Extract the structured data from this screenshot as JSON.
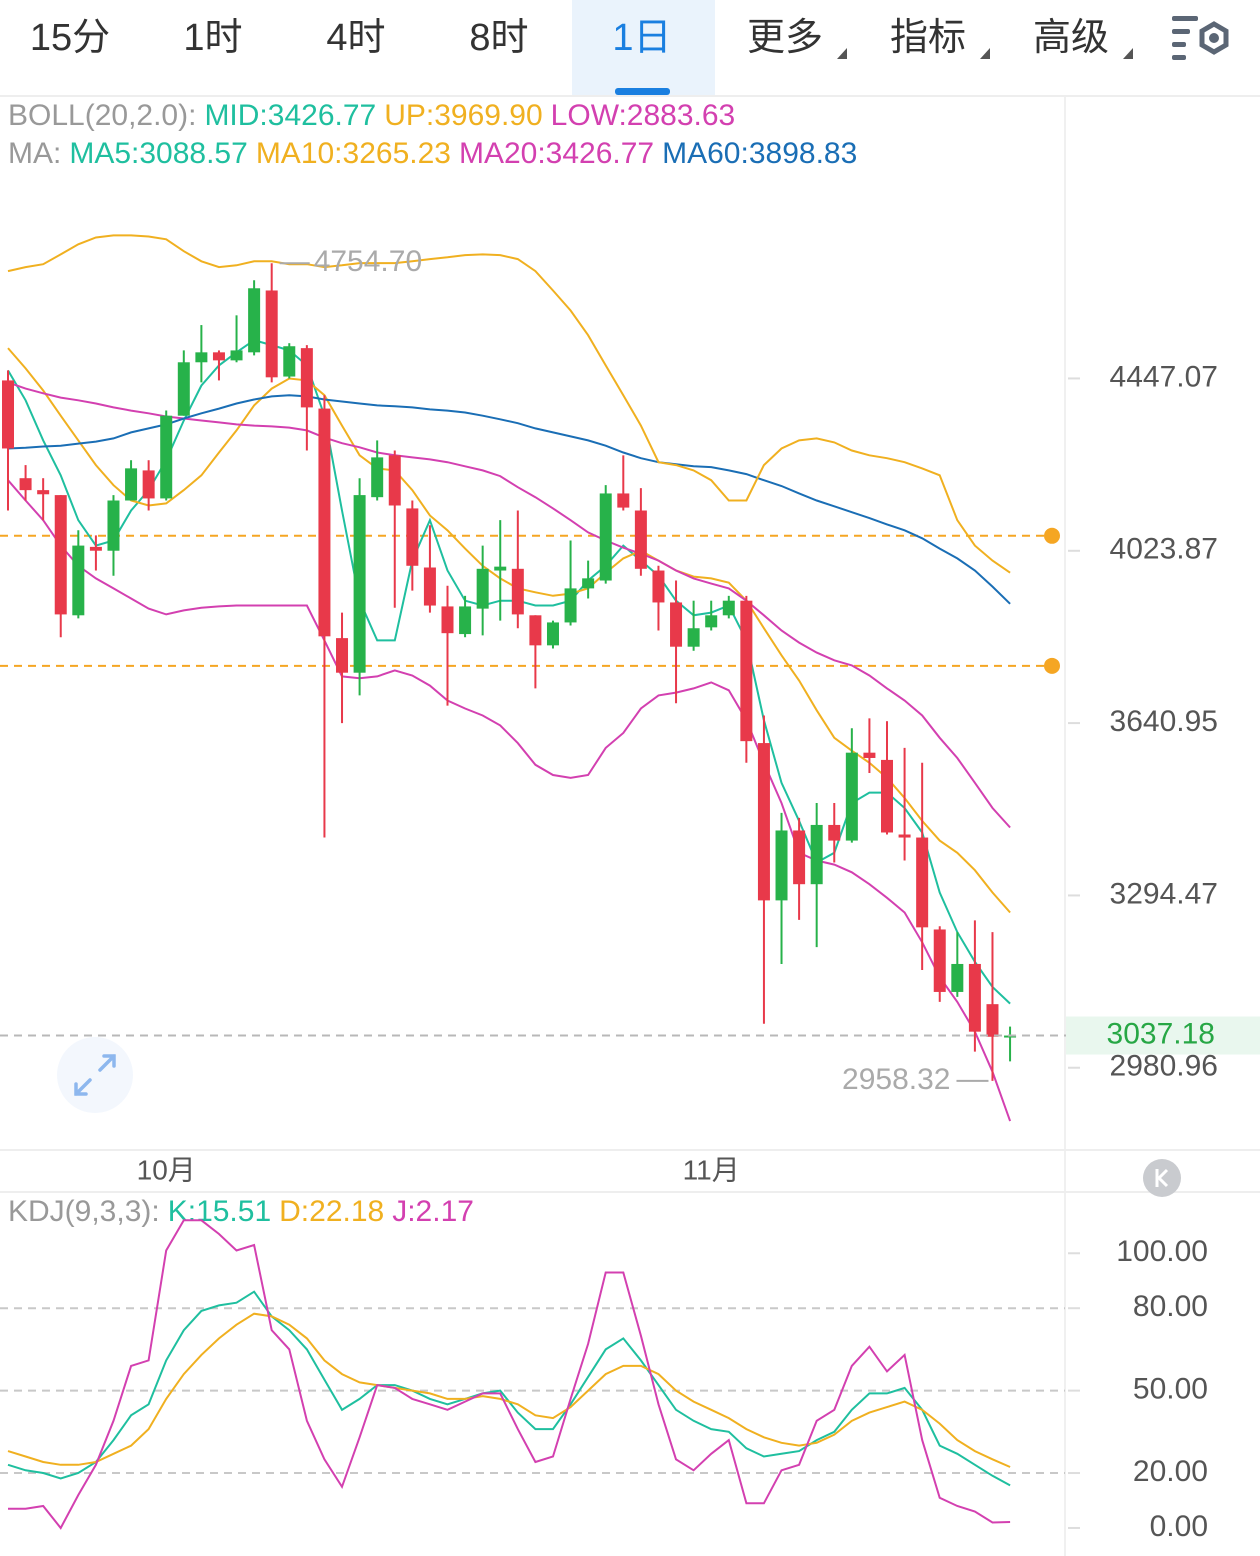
{
  "tabs": [
    {
      "label": "15分"
    },
    {
      "label": "1时"
    },
    {
      "label": "4时"
    },
    {
      "label": "8时"
    },
    {
      "label": "1日",
      "active": true
    },
    {
      "label": "更多",
      "menu": true
    },
    {
      "label": "指标",
      "menu": true
    },
    {
      "label": "高级",
      "menu": true
    }
  ],
  "chart_data": [
    {
      "type": "candlestick",
      "legend_rows": [
        {
          "label": "BOLL(20,2.0):",
          "items": [
            {
              "text": "MID:3426.77",
              "color": "#1fbf9f"
            },
            {
              "text": "UP:3969.90",
              "color": "#f0b020"
            },
            {
              "text": "LOW:2883.63",
              "color": "#d340b0"
            }
          ]
        },
        {
          "label": "MA:",
          "items": [
            {
              "text": "MA5:3088.57",
              "color": "#1fbf9f"
            },
            {
              "text": "MA10:3265.23",
              "color": "#f0b020"
            },
            {
              "text": "MA20:3426.77",
              "color": "#d340b0"
            },
            {
              "text": "MA60:3898.83",
              "color": "#1a6eb5"
            }
          ]
        }
      ],
      "categories": [
        null,
        null,
        null,
        null,
        null,
        null,
        null,
        null,
        null,
        "10月",
        null,
        null,
        null,
        null,
        null,
        null,
        null,
        null,
        null,
        null,
        null,
        null,
        null,
        null,
        null,
        null,
        null,
        null,
        null,
        null,
        null,
        null,
        null,
        null,
        null,
        null,
        null,
        null,
        null,
        null,
        "11月",
        null,
        null,
        null,
        null,
        null,
        null,
        null,
        null,
        null,
        null,
        null,
        null,
        null,
        null,
        null,
        null,
        null
      ],
      "open": [
        4442,
        4197,
        4168,
        4156,
        3876,
        4033,
        4024,
        4143,
        4216,
        4148,
        4352,
        4489,
        4515,
        4494,
        4515,
        4680,
        4452,
        4526,
        4370,
        3825,
        3749,
        4151,
        4253,
        4124,
        3985,
        3896,
        3834,
        3891,
        3978,
        3982,
        3876,
        3809,
        3860,
        3937,
        3955,
        4160,
        4119,
        3978,
        3905,
        3806,
        3849,
        3876,
        3909,
        3599,
        3285,
        3421,
        3316,
        3432,
        3401,
        3579,
        3564,
        3413,
        3407,
        3230,
        3115,
        3166,
        3093,
        3034
      ],
      "high": [
        4468,
        4229,
        4197,
        4156,
        4072,
        4060,
        4156,
        4241,
        4241,
        4365,
        4520,
        4587,
        4520,
        4613,
        4708,
        4754.7,
        4539,
        4534,
        4404,
        3882,
        4197,
        4290,
        4265,
        4143,
        4084,
        3943,
        3920,
        4036,
        4096,
        4119,
        3876,
        3864,
        4048,
        4001,
        4180,
        4253,
        4173,
        3989,
        3955,
        3909,
        3909,
        3920,
        3920,
        3657,
        3456,
        3446,
        3476,
        3476,
        3630,
        3651,
        3645,
        3589,
        3558,
        3236,
        3225,
        3247,
        3225,
        3053
      ],
      "low": [
        4119,
        4143,
        4096,
        3827,
        3869,
        3978,
        3966,
        4143,
        4119,
        4143,
        4352,
        4437,
        4442,
        4489,
        4507,
        4437,
        4447,
        4265,
        3407,
        3641,
        3700,
        4143,
        3893,
        3932,
        3882,
        3678,
        3827,
        3831,
        3864,
        3847,
        3715,
        3802,
        3853,
        3914,
        3948,
        4119,
        3966,
        3842,
        3683,
        3797,
        3842,
        3869,
        3558,
        3058,
        3166,
        3248,
        3197,
        3358,
        3397,
        3537,
        3413,
        3362,
        3155,
        3097,
        3106,
        3009,
        2958.32,
        2992
      ],
      "close": [
        4270,
        4168,
        4158,
        3878,
        4036,
        4024,
        4143,
        4221,
        4148,
        4352,
        4489,
        4515,
        4494,
        4520,
        4686,
        4450,
        4531,
        4373,
        3829,
        3749,
        4156,
        4248,
        4131,
        3989,
        3898,
        3836,
        3896,
        3982,
        3987,
        3878,
        3809,
        3860,
        3937,
        3960,
        4160,
        4126,
        3982,
        3905,
        3806,
        3847,
        3876,
        3909,
        3603,
        3285,
        3421,
        3316,
        3432,
        3401,
        3579,
        3568,
        3417,
        3407,
        3234,
        3115,
        3166,
        3044,
        3035,
        3037.18
      ],
      "up_color": "#27b24a",
      "down_color": "#e8394a",
      "series": [
        {
          "color": "#1fbf9f",
          "values": [
            4468,
            4391,
            4290,
            4204,
            4096,
            4036,
            4048,
            4119,
            4168,
            4241,
            4340,
            4429,
            4481,
            4515,
            4547,
            4534,
            4520,
            4481,
            4352,
            4119,
            3909,
            3820,
            3820,
            4001,
            4096,
            3978,
            3909,
            3898,
            3909,
            3909,
            3898,
            3898,
            3909,
            3955,
            3989,
            4036,
            4001,
            3966,
            3909,
            3876,
            3882,
            3898,
            3820,
            3647,
            3517,
            3440,
            3358,
            3377,
            3476,
            3497,
            3497,
            3466,
            3417,
            3300,
            3225,
            3170,
            3124,
            3094
          ]
        },
        {
          "color": "#f0b020",
          "values": [
            4526,
            4473,
            4416,
            4352,
            4290,
            4229,
            4180,
            4143,
            4131,
            4136,
            4168,
            4204,
            4260,
            4315,
            4378,
            4421,
            4447,
            4442,
            4404,
            4327,
            4253,
            4221,
            4216,
            4168,
            4107,
            4072,
            4029,
            3989,
            3960,
            3937,
            3928,
            3920,
            3925,
            3937,
            3973,
            4006,
            4024,
            4001,
            3978,
            3964,
            3960,
            3950,
            3909,
            3847,
            3787,
            3732,
            3668,
            3610,
            3583,
            3558,
            3527,
            3486,
            3440,
            3401,
            3377,
            3343,
            3300,
            3262
          ]
        },
        {
          "color": "#d340b0",
          "values": [
            4437,
            4421,
            4409,
            4398,
            4391,
            4383,
            4373,
            4365,
            4358,
            4350,
            4345,
            4340,
            4335,
            4330,
            4327,
            4325,
            4322,
            4315,
            4297,
            4283,
            4273,
            4260,
            4253,
            4248,
            4243,
            4236,
            4226,
            4216,
            4202,
            4175,
            4151,
            4124,
            4096,
            4067,
            4048,
            4031,
            4017,
            4001,
            3978,
            3960,
            3948,
            3937,
            3909,
            3876,
            3842,
            3815,
            3793,
            3776,
            3765,
            3743,
            3715,
            3689,
            3657,
            3610,
            3568,
            3517,
            3466,
            3427
          ]
        },
        {
          "color": "#1a6eb5",
          "values": [
            4270,
            4272,
            4275,
            4277,
            4282,
            4287,
            4295,
            4310,
            4320,
            4330,
            4345,
            4358,
            4370,
            4383,
            4393,
            4401,
            4404,
            4401,
            4393,
            4388,
            4383,
            4378,
            4376,
            4373,
            4368,
            4365,
            4360,
            4352,
            4343,
            4333,
            4320,
            4310,
            4300,
            4290,
            4277,
            4260,
            4246,
            4236,
            4231,
            4226,
            4224,
            4216,
            4207,
            4192,
            4178,
            4160,
            4143,
            4129,
            4115,
            4101,
            4086,
            4072,
            4053,
            4029,
            4006,
            3978,
            3941,
            3902
          ]
        },
        {
          "color": "#f0b020",
          "values": [
            4733,
            4744,
            4752,
            4779,
            4807,
            4826,
            4832,
            4832,
            4829,
            4821,
            4788,
            4760,
            4744,
            4749,
            4760,
            4760,
            4752,
            4752,
            4744,
            4749,
            4755,
            4755,
            4755,
            4760,
            4766,
            4771,
            4777,
            4779,
            4777,
            4766,
            4733,
            4680,
            4626,
            4560,
            4481,
            4404,
            4327,
            4236,
            4229,
            4216,
            4192,
            4143,
            4143,
            4229,
            4270,
            4290,
            4295,
            4285,
            4265,
            4253,
            4246,
            4236,
            4221,
            4204,
            4096,
            4036,
            4001,
            3973
          ]
        },
        {
          "color": "#d340b0",
          "values": [
            4192,
            4143,
            4096,
            4036,
            3989,
            3960,
            3937,
            3914,
            3891,
            3878,
            3887,
            3893,
            3896,
            3898,
            3898,
            3898,
            3898,
            3898,
            3820,
            3741,
            3737,
            3741,
            3754,
            3743,
            3721,
            3689,
            3672,
            3657,
            3636,
            3599,
            3554,
            3533,
            3527,
            3533,
            3589,
            3620,
            3672,
            3700,
            3706,
            3715,
            3728,
            3711,
            3647,
            3558,
            3476,
            3377,
            3362,
            3354,
            3339,
            3316,
            3290,
            3262,
            3206,
            3142,
            3097,
            3044,
            2974,
            2890
          ]
        }
      ],
      "ylim": [
        2842,
        5227
      ],
      "log": true,
      "yticks": [
        4447.07,
        4023.87,
        3640.95,
        3294.47,
        2980.96
      ],
      "high_label": "4754.70",
      "low_label": "2958.32",
      "alert_lines": [
        4059,
        3764
      ],
      "alert_color": "#f5a623"
    },
    {
      "type": "line",
      "legend_rows": [
        {
          "label": "KDJ(9,3,3):",
          "items": [
            {
              "text": "K:15.51",
              "color": "#1fbf9f"
            },
            {
              "text": "D:22.18",
              "color": "#f0b020"
            },
            {
              "text": "J:2.17",
              "color": "#d340b0"
            }
          ]
        }
      ],
      "series": [
        {
          "color": "#1fbf9f",
          "values": [
            23,
            21,
            20,
            18,
            20,
            24,
            32,
            41,
            45,
            61,
            72,
            79,
            81,
            82,
            86,
            77,
            72,
            65,
            54,
            43,
            47,
            52,
            52,
            50,
            47,
            45,
            47,
            49,
            50,
            42,
            36,
            36,
            45,
            55,
            65,
            69,
            61,
            52,
            43,
            39,
            36,
            35,
            29,
            26,
            27,
            28,
            32,
            35,
            43,
            49,
            49,
            51,
            43,
            30,
            27,
            23,
            19,
            15.51
          ]
        },
        {
          "color": "#f0b020",
          "values": [
            28,
            26,
            24,
            23,
            23,
            24,
            27,
            30,
            36,
            47,
            56,
            63,
            69,
            74,
            78,
            77,
            74,
            69,
            61,
            56,
            53,
            52,
            51,
            50,
            49,
            47,
            47,
            48,
            47,
            45,
            41,
            40,
            44,
            50,
            56,
            59,
            59,
            56,
            50,
            46,
            43,
            40,
            36,
            33,
            31,
            30,
            31,
            34,
            39,
            42,
            44,
            46,
            43,
            38,
            32,
            28,
            25,
            22.18
          ]
        },
        {
          "color": "#d340b0",
          "values": [
            7,
            7,
            8,
            0,
            12,
            23,
            39,
            59,
            61,
            101,
            112,
            112,
            107,
            101,
            103,
            72,
            65,
            39,
            25,
            15,
            33,
            52,
            51,
            47,
            45,
            43,
            46,
            49,
            49,
            36,
            24,
            26,
            47,
            67,
            93,
            93,
            70,
            45,
            25,
            21,
            27,
            32,
            9,
            9,
            21,
            23,
            39,
            43,
            59,
            66,
            57,
            63,
            32,
            11,
            8,
            6,
            2,
            2.17
          ]
        }
      ],
      "ylim": [
        -10.2,
        121.2
      ],
      "yticks": [
        {
          "value": 100,
          "label": "100.00"
        },
        {
          "value": 80,
          "label": "80.00",
          "grid": true
        },
        {
          "value": 50,
          "label": "50.00",
          "grid": true
        },
        {
          "value": 20,
          "label": "20.00",
          "grid": true
        },
        {
          "value": 0,
          "label": "0.00"
        }
      ]
    }
  ]
}
